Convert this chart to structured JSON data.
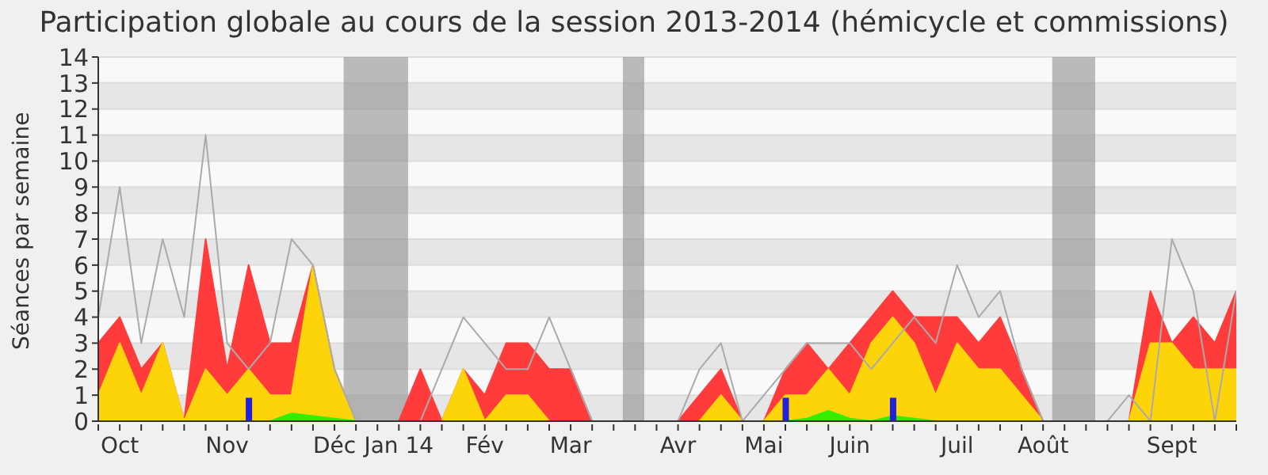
{
  "chart_data": {
    "type": "area",
    "title": "Participation globale au cours de la session 2013-2014 (hémicycle et commissions)",
    "ylabel": "Séances par semaine",
    "x": [
      "2013-09-30",
      "2013-10-07",
      "2013-10-14",
      "2013-10-21",
      "2013-10-28",
      "2013-11-04",
      "2013-11-11",
      "2013-11-18",
      "2013-11-25",
      "2013-12-02",
      "2013-12-09",
      "2013-12-16",
      "2013-12-23",
      "2013-12-30",
      "2014-01-06",
      "2014-01-13",
      "2014-01-20",
      "2014-01-27",
      "2014-02-03",
      "2014-02-10",
      "2014-02-17",
      "2014-02-24",
      "2014-03-03",
      "2014-03-10",
      "2014-03-17",
      "2014-03-24",
      "2014-03-31",
      "2014-04-07",
      "2014-04-14",
      "2014-04-21",
      "2014-04-28",
      "2014-05-05",
      "2014-05-12",
      "2014-05-19",
      "2014-05-26",
      "2014-06-02",
      "2014-06-09",
      "2014-06-16",
      "2014-06-23",
      "2014-06-30",
      "2014-07-07",
      "2014-07-14",
      "2014-07-21",
      "2014-07-28",
      "2014-08-04",
      "2014-08-11",
      "2014-08-18",
      "2014-08-25",
      "2014-09-01",
      "2014-09-08",
      "2014-09-15",
      "2014-09-22",
      "2014-09-29",
      "2014-10-06"
    ],
    "series": [
      {
        "type": "line",
        "color": "#aaaaaa",
        "values": [
          4,
          9,
          3,
          7,
          4,
          11,
          3,
          2,
          3,
          7,
          6,
          2,
          0,
          0,
          0,
          0,
          2,
          4,
          3,
          2,
          2,
          4,
          2,
          0,
          0,
          0,
          0,
          0,
          2,
          3,
          0,
          1,
          2,
          3,
          3,
          3,
          2,
          3,
          4,
          3,
          6,
          4,
          5,
          2,
          0,
          0,
          0,
          0,
          1,
          0,
          7,
          5,
          0,
          5
        ]
      },
      {
        "type": "area",
        "color": "#ff3b3b",
        "values": [
          3,
          4,
          2,
          3,
          0,
          7,
          2,
          6,
          3,
          3,
          6,
          2,
          0,
          0,
          0,
          2,
          0,
          2,
          1,
          3,
          3,
          2,
          2,
          0,
          0,
          0,
          0,
          0,
          1,
          2,
          0,
          0,
          2,
          3,
          2,
          3,
          4,
          5,
          4,
          4,
          4,
          3,
          4,
          2,
          0,
          0,
          0,
          0,
          0,
          5,
          3,
          4,
          3,
          5
        ]
      },
      {
        "type": "area",
        "color": "#fdd40a",
        "values": [
          1,
          3,
          1,
          3,
          0,
          2,
          1,
          2,
          1,
          1,
          6,
          2,
          0,
          0,
          0,
          0,
          0,
          2,
          0,
          1,
          1,
          0,
          0,
          0,
          0,
          0,
          0,
          0,
          0,
          1,
          0,
          0,
          1,
          1,
          2,
          1,
          3,
          4,
          3,
          1,
          3,
          2,
          2,
          1,
          0,
          0,
          0,
          0,
          0,
          3,
          3,
          2,
          2,
          2
        ]
      },
      {
        "color": "#33ee00",
        "values": [
          0,
          0,
          0,
          0,
          0,
          0,
          0,
          0,
          0,
          0.3,
          0.2,
          0.1,
          0,
          0,
          0,
          0,
          0,
          0,
          0,
          0,
          0,
          0,
          0,
          0,
          0,
          0,
          0,
          0,
          0,
          0,
          0,
          0,
          0,
          0.1,
          0.4,
          0.1,
          0,
          0.2,
          0.1,
          0,
          0,
          0,
          0,
          0,
          0,
          0,
          0,
          0,
          0,
          0,
          0,
          0,
          0,
          0
        ]
      },
      {
        "type": "bar",
        "color": "#2020dd",
        "values": [
          null,
          null,
          null,
          null,
          null,
          null,
          null,
          0.9,
          null,
          null,
          null,
          null,
          null,
          null,
          null,
          null,
          null,
          null,
          null,
          null,
          null,
          null,
          null,
          null,
          null,
          null,
          null,
          null,
          null,
          null,
          null,
          null,
          0.9,
          null,
          null,
          null,
          null,
          0.9,
          null,
          null,
          null,
          null,
          null,
          null,
          null,
          null,
          null,
          null,
          null,
          null,
          null,
          null,
          null,
          null
        ]
      }
    ],
    "xlim": [
      "2013-09-30",
      "2014-10-06"
    ],
    "xticks": [
      {
        "value": "2013-09-30",
        "label": null
      },
      {
        "value": "2013-10-07",
        "label": "Oct"
      },
      {
        "value": "2013-10-14",
        "label": null
      },
      {
        "value": "2013-10-21",
        "label": null
      },
      {
        "value": "2013-10-28",
        "label": null
      },
      {
        "value": "2013-11-04",
        "label": null
      },
      {
        "value": "2013-11-11",
        "label": "Nov"
      },
      {
        "value": "2013-11-18",
        "label": null
      },
      {
        "value": "2013-11-25",
        "label": null
      },
      {
        "value": "2013-12-02",
        "label": null
      },
      {
        "value": "2013-12-09",
        "label": null
      },
      {
        "value": "2013-12-16",
        "label": "Déc"
      },
      {
        "value": "2013-12-23",
        "label": null
      },
      {
        "value": "2013-12-30",
        "label": null
      },
      {
        "value": "2014-01-06",
        "label": "Jan 14"
      },
      {
        "value": "2014-01-13",
        "label": null
      },
      {
        "value": "2014-01-20",
        "label": null
      },
      {
        "value": "2014-01-27",
        "label": null
      },
      {
        "value": "2014-02-03",
        "label": "Fév"
      },
      {
        "value": "2014-02-10",
        "label": null
      },
      {
        "value": "2014-02-17",
        "label": null
      },
      {
        "value": "2014-02-24",
        "label": null
      },
      {
        "value": "2014-03-03",
        "label": "Mar"
      },
      {
        "value": "2014-03-10",
        "label": null
      },
      {
        "value": "2014-03-17",
        "label": null
      },
      {
        "value": "2014-03-24",
        "label": null
      },
      {
        "value": "2014-03-31",
        "label": null
      },
      {
        "value": "2014-04-07",
        "label": "Avr"
      },
      {
        "value": "2014-04-14",
        "label": null
      },
      {
        "value": "2014-04-21",
        "label": null
      },
      {
        "value": "2014-04-28",
        "label": null
      },
      {
        "value": "2014-05-05",
        "label": "Mai"
      },
      {
        "value": "2014-05-12",
        "label": null
      },
      {
        "value": "2014-05-19",
        "label": null
      },
      {
        "value": "2014-05-26",
        "label": null
      },
      {
        "value": "2014-06-02",
        "label": "Juin"
      },
      {
        "value": "2014-06-09",
        "label": null
      },
      {
        "value": "2014-06-16",
        "label": null
      },
      {
        "value": "2014-06-23",
        "label": null
      },
      {
        "value": "2014-06-30",
        "label": null
      },
      {
        "value": "2014-07-07",
        "label": "Juil"
      },
      {
        "value": "2014-07-14",
        "label": null
      },
      {
        "value": "2014-07-21",
        "label": null
      },
      {
        "value": "2014-07-28",
        "label": null
      },
      {
        "value": "2014-08-04",
        "label": "Août"
      },
      {
        "value": "2014-08-11",
        "label": null
      },
      {
        "value": "2014-08-18",
        "label": null
      },
      {
        "value": "2014-08-25",
        "label": null
      },
      {
        "value": "2014-09-01",
        "label": null
      },
      {
        "value": "2014-09-08",
        "label": null
      },
      {
        "value": "2014-09-15",
        "label": "Sept"
      },
      {
        "value": "2014-09-22",
        "label": null
      },
      {
        "value": "2014-09-29",
        "label": null
      },
      {
        "value": "2014-10-06",
        "label": null
      }
    ],
    "ylim": [
      0,
      14
    ],
    "yticks": [
      0,
      1,
      2,
      3,
      4,
      5,
      6,
      7,
      8,
      9,
      10,
      11,
      12,
      13,
      14
    ],
    "grid": "y",
    "bands": [
      {
        "axis": "x",
        "from": "2013-12-19",
        "to": "2014-01-09",
        "color": "#909090"
      },
      {
        "axis": "x",
        "from": "2014-03-20",
        "to": "2014-03-27",
        "color": "#909090"
      },
      {
        "axis": "x",
        "from": "2014-08-07",
        "to": "2014-08-21",
        "color": "#909090"
      }
    ]
  }
}
